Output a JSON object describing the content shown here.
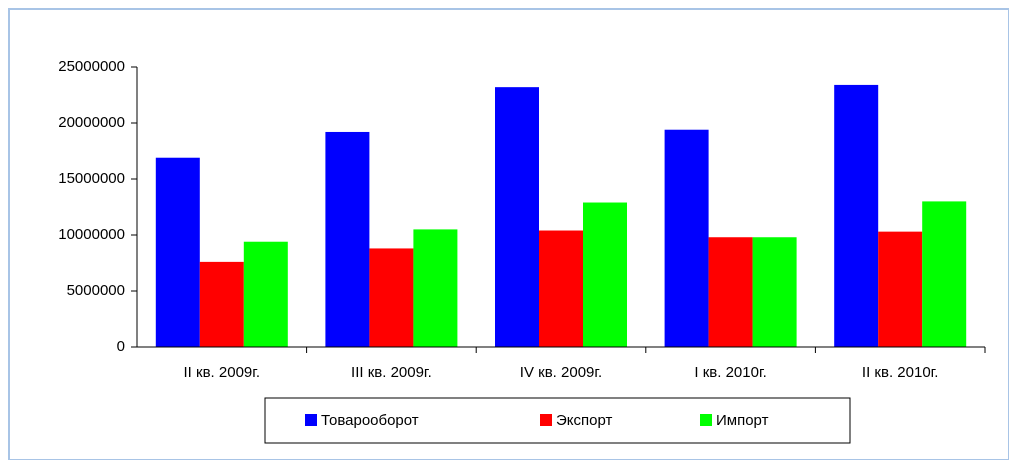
{
  "chart_data": {
    "type": "bar",
    "categories": [
      "II кв. 2009г.",
      "III кв. 2009г.",
      "IV кв. 2009г.",
      "I кв. 2010г.",
      "II кв. 2010г."
    ],
    "series": [
      {
        "name": "Товарооборот",
        "color": "#0000ff",
        "values": [
          16900000,
          19200000,
          23200000,
          19400000,
          23400000
        ]
      },
      {
        "name": "Экспорт",
        "color": "#ff0000",
        "values": [
          7600000,
          8800000,
          10400000,
          9800000,
          10300000
        ]
      },
      {
        "name": "Импорт",
        "color": "#00ff00",
        "values": [
          9400000,
          10500000,
          12900000,
          9800000,
          13000000
        ]
      }
    ],
    "ylim": [
      0,
      25000000
    ],
    "yticks": [
      0,
      5000000,
      10000000,
      15000000,
      20000000,
      25000000
    ],
    "legend": "bottom"
  }
}
